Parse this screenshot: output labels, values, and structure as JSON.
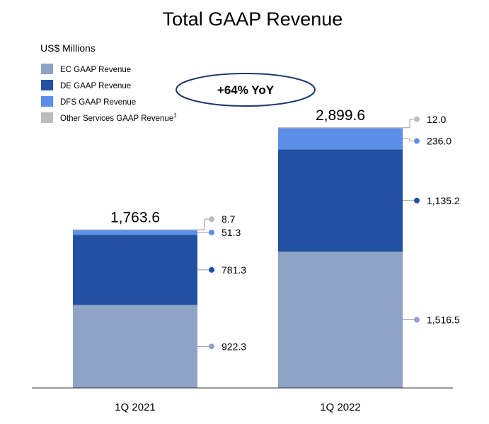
{
  "chart_data": {
    "type": "bar",
    "stacked": true,
    "title": "Total GAAP Revenue",
    "unit_label": "US$ Millions",
    "categories": [
      "1Q 2021",
      "1Q 2022"
    ],
    "series": [
      {
        "name": "EC GAAP Revenue",
        "color": "#8fa3c7",
        "values": [
          922.3,
          1516.5
        ],
        "labels": [
          "922.3",
          "1,516.5"
        ]
      },
      {
        "name": "DE GAAP Revenue",
        "color": "#2251a1",
        "values": [
          781.3,
          1135.2
        ],
        "labels": [
          "781.3",
          "1,135.2"
        ]
      },
      {
        "name": "DFS GAAP Revenue",
        "color": "#5b8ee6",
        "values": [
          51.3,
          236.0
        ],
        "labels": [
          "51.3",
          "236.0"
        ]
      },
      {
        "name": "Other Services GAAP Revenue",
        "footnote": "1",
        "color": "#bcbcbc",
        "values": [
          8.7,
          12.0
        ],
        "labels": [
          "8.7",
          "12.0"
        ]
      }
    ],
    "totals": [
      "1,763.6",
      "2,899.6"
    ],
    "annotation": "+64% YoY",
    "legend_position": "top-left",
    "grid": false
  }
}
